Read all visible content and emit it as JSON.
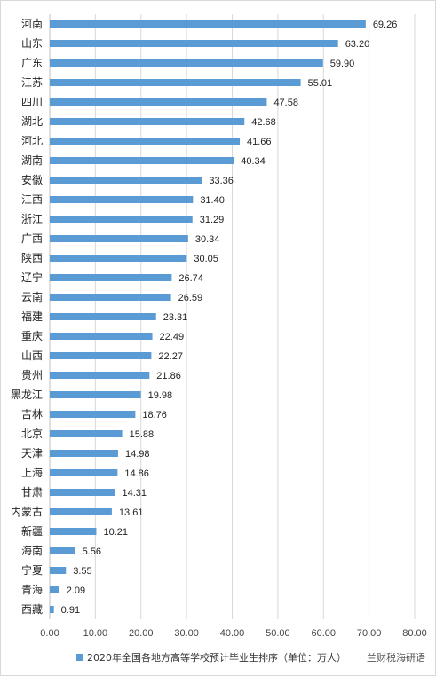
{
  "chart_data": {
    "type": "bar",
    "orientation": "horizontal",
    "categories": [
      "河南",
      "山东",
      "广东",
      "江苏",
      "四川",
      "湖北",
      "河北",
      "湖南",
      "安徽",
      "江西",
      "浙江",
      "广西",
      "陕西",
      "辽宁",
      "云南",
      "福建",
      "重庆",
      "山西",
      "贵州",
      "黑龙江",
      "吉林",
      "北京",
      "天津",
      "上海",
      "甘肃",
      "内蒙古",
      "新疆",
      "海南",
      "宁夏",
      "青海",
      "西藏"
    ],
    "values": [
      69.26,
      63.2,
      59.9,
      55.01,
      47.58,
      42.68,
      41.66,
      40.34,
      33.36,
      31.4,
      31.29,
      30.34,
      30.05,
      26.74,
      26.59,
      23.31,
      22.49,
      22.27,
      21.86,
      19.98,
      18.76,
      15.88,
      14.98,
      14.86,
      14.31,
      13.61,
      10.21,
      5.56,
      3.55,
      2.09,
      0.91
    ],
    "value_labels": [
      "69.26",
      "63.20",
      "59.90",
      "55.01",
      "47.58",
      "42.68",
      "41.66",
      "40.34",
      "33.36",
      "31.40",
      "31.29",
      "30.34",
      "30.05",
      "26.74",
      "26.59",
      "23.31",
      "22.49",
      "22.27",
      "21.86",
      "19.98",
      "18.76",
      "15.88",
      "14.98",
      "14.86",
      "14.31",
      "13.61",
      "10.21",
      "5.56",
      "3.55",
      "2.09",
      "0.91"
    ],
    "x_ticks": [
      "0.00",
      "10.00",
      "20.00",
      "30.00",
      "40.00",
      "50.00",
      "60.00",
      "70.00",
      "80.00"
    ],
    "xlim": [
      0,
      80
    ],
    "grid": true,
    "series": [
      {
        "name": "2020年全国各地方高等学校预计毕业生排序（单位：万人）"
      }
    ],
    "legend_position": "bottom",
    "bar_color": "#5b9bd5",
    "watermark": "兰财税海研语"
  }
}
